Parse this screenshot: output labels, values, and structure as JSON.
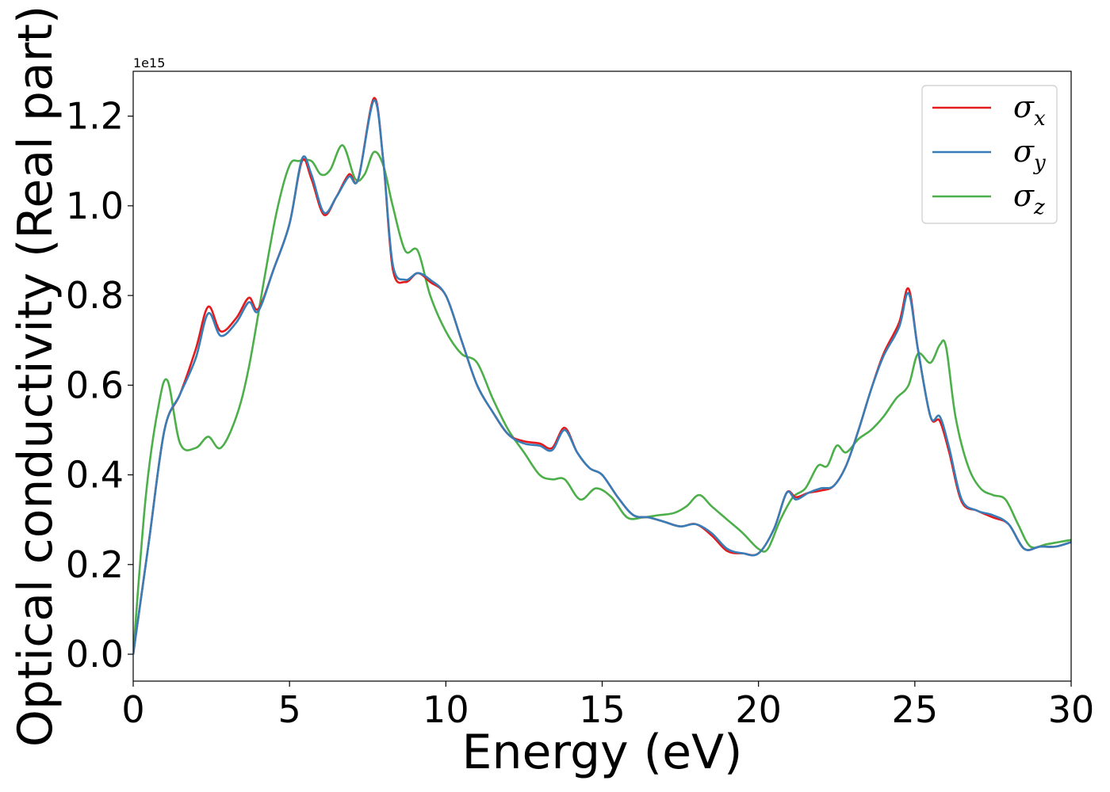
{
  "chart_data": {
    "type": "line",
    "title": "",
    "xlabel": "Energy (eV)",
    "ylabel": "Optical conductivity (Real part)",
    "y_offset_text": "1e15",
    "xlim": [
      0,
      30
    ],
    "ylim": [
      -0.06,
      1.3
    ],
    "y_scale_factor": "1e15",
    "x_ticks": [
      0,
      5,
      10,
      15,
      20,
      25,
      30
    ],
    "x_tick_labels": [
      "0",
      "5",
      "10",
      "15",
      "20",
      "25",
      "30"
    ],
    "y_ticks": [
      0.0,
      0.2,
      0.4,
      0.6,
      0.8,
      1.0,
      1.2
    ],
    "y_tick_labels": [
      "0.0",
      "0.2",
      "0.4",
      "0.6",
      "0.8",
      "1.0",
      "1.2"
    ],
    "grid": false,
    "legend_position": "top-right",
    "series": [
      {
        "name": "σx",
        "symbol": "σ",
        "subscript": "x",
        "color": "#e41a1c",
        "x": [
          0,
          0.5,
          1.0,
          1.5,
          2.0,
          2.4,
          2.8,
          3.3,
          3.7,
          4.0,
          4.5,
          5.0,
          5.4,
          5.7,
          6.1,
          6.5,
          6.9,
          7.2,
          7.7,
          8.0,
          8.3,
          8.7,
          9.1,
          9.5,
          10.0,
          10.5,
          11.0,
          11.5,
          12.0,
          12.5,
          13.0,
          13.4,
          13.8,
          14.2,
          14.6,
          15.0,
          15.5,
          16.0,
          16.5,
          17.0,
          17.5,
          18.0,
          18.5,
          19.0,
          19.5,
          20.0,
          20.5,
          20.9,
          21.2,
          21.6,
          22.0,
          22.4,
          22.8,
          23.2,
          23.6,
          24.0,
          24.5,
          24.8,
          25.1,
          25.5,
          25.8,
          26.1,
          26.5,
          27.0,
          27.5,
          28.0,
          28.5,
          29.0,
          29.5,
          30.0
        ],
        "y": [
          0,
          0.25,
          0.5,
          0.58,
          0.68,
          0.775,
          0.72,
          0.75,
          0.795,
          0.77,
          0.86,
          0.96,
          1.1,
          1.06,
          0.98,
          1.02,
          1.07,
          1.06,
          1.24,
          1.1,
          0.86,
          0.83,
          0.85,
          0.83,
          0.8,
          0.7,
          0.6,
          0.54,
          0.49,
          0.475,
          0.47,
          0.46,
          0.505,
          0.45,
          0.415,
          0.4,
          0.35,
          0.31,
          0.305,
          0.295,
          0.285,
          0.29,
          0.265,
          0.23,
          0.225,
          0.225,
          0.28,
          0.36,
          0.35,
          0.36,
          0.365,
          0.375,
          0.42,
          0.5,
          0.59,
          0.67,
          0.74,
          0.815,
          0.68,
          0.53,
          0.52,
          0.45,
          0.34,
          0.32,
          0.305,
          0.29,
          0.235,
          0.24,
          0.24,
          0.25
        ]
      },
      {
        "name": "σy",
        "symbol": "σ",
        "subscript": "y",
        "color": "#377eb8",
        "x": [
          0,
          0.5,
          1.0,
          1.5,
          2.0,
          2.4,
          2.8,
          3.3,
          3.7,
          4.0,
          4.5,
          5.0,
          5.4,
          5.7,
          6.1,
          6.5,
          6.9,
          7.2,
          7.7,
          8.0,
          8.3,
          8.7,
          9.1,
          9.5,
          10.0,
          10.5,
          11.0,
          11.5,
          12.0,
          12.5,
          13.0,
          13.4,
          13.8,
          14.2,
          14.6,
          15.0,
          15.5,
          16.0,
          16.5,
          17.0,
          17.5,
          18.0,
          18.5,
          19.0,
          19.5,
          20.0,
          20.5,
          20.9,
          21.2,
          21.6,
          22.0,
          22.4,
          22.8,
          23.2,
          23.6,
          24.0,
          24.5,
          24.8,
          25.1,
          25.5,
          25.8,
          26.1,
          26.5,
          27.0,
          27.5,
          28.0,
          28.5,
          29.0,
          29.5,
          30.0
        ],
        "y": [
          0,
          0.25,
          0.5,
          0.58,
          0.66,
          0.76,
          0.71,
          0.74,
          0.785,
          0.765,
          0.86,
          0.96,
          1.105,
          1.07,
          0.985,
          1.02,
          1.065,
          1.06,
          1.235,
          1.1,
          0.87,
          0.835,
          0.85,
          0.835,
          0.8,
          0.7,
          0.6,
          0.54,
          0.49,
          0.47,
          0.465,
          0.455,
          0.5,
          0.45,
          0.415,
          0.4,
          0.35,
          0.31,
          0.305,
          0.295,
          0.285,
          0.29,
          0.27,
          0.235,
          0.225,
          0.225,
          0.28,
          0.36,
          0.345,
          0.36,
          0.37,
          0.375,
          0.42,
          0.5,
          0.59,
          0.665,
          0.73,
          0.805,
          0.68,
          0.53,
          0.53,
          0.46,
          0.345,
          0.32,
          0.31,
          0.29,
          0.235,
          0.24,
          0.24,
          0.25
        ]
      },
      {
        "name": "σz",
        "symbol": "σ",
        "subscript": "z",
        "color": "#4daf4a",
        "x": [
          0,
          0.4,
          0.8,
          1.1,
          1.5,
          2.0,
          2.4,
          2.8,
          3.3,
          3.7,
          4.2,
          4.6,
          5.0,
          5.3,
          5.7,
          6.0,
          6.3,
          6.7,
          7.1,
          7.4,
          7.7,
          8.0,
          8.3,
          8.7,
          9.1,
          9.5,
          10.0,
          10.5,
          11.0,
          11.5,
          12.0,
          12.5,
          13.0,
          13.4,
          13.8,
          14.3,
          14.8,
          15.3,
          15.8,
          16.3,
          16.8,
          17.3,
          17.7,
          18.1,
          18.5,
          19.0,
          19.5,
          20.0,
          20.3,
          20.7,
          21.1,
          21.5,
          21.9,
          22.2,
          22.5,
          22.8,
          23.2,
          23.6,
          24.0,
          24.4,
          24.8,
          25.1,
          25.5,
          25.8,
          26.0,
          26.3,
          26.7,
          27.1,
          27.5,
          27.9,
          28.3,
          28.7,
          29.2,
          29.6,
          30.0
        ],
        "y": [
          0,
          0.35,
          0.55,
          0.61,
          0.47,
          0.46,
          0.485,
          0.46,
          0.53,
          0.64,
          0.84,
          0.99,
          1.09,
          1.1,
          1.1,
          1.07,
          1.08,
          1.135,
          1.06,
          1.07,
          1.12,
          1.09,
          1.0,
          0.9,
          0.9,
          0.8,
          0.72,
          0.67,
          0.65,
          0.57,
          0.5,
          0.45,
          0.4,
          0.39,
          0.39,
          0.345,
          0.37,
          0.35,
          0.305,
          0.305,
          0.31,
          0.315,
          0.33,
          0.355,
          0.33,
          0.3,
          0.27,
          0.235,
          0.235,
          0.3,
          0.35,
          0.37,
          0.42,
          0.42,
          0.465,
          0.45,
          0.48,
          0.5,
          0.53,
          0.57,
          0.6,
          0.67,
          0.65,
          0.69,
          0.685,
          0.53,
          0.42,
          0.37,
          0.355,
          0.345,
          0.29,
          0.24,
          0.245,
          0.25,
          0.255
        ]
      }
    ]
  }
}
